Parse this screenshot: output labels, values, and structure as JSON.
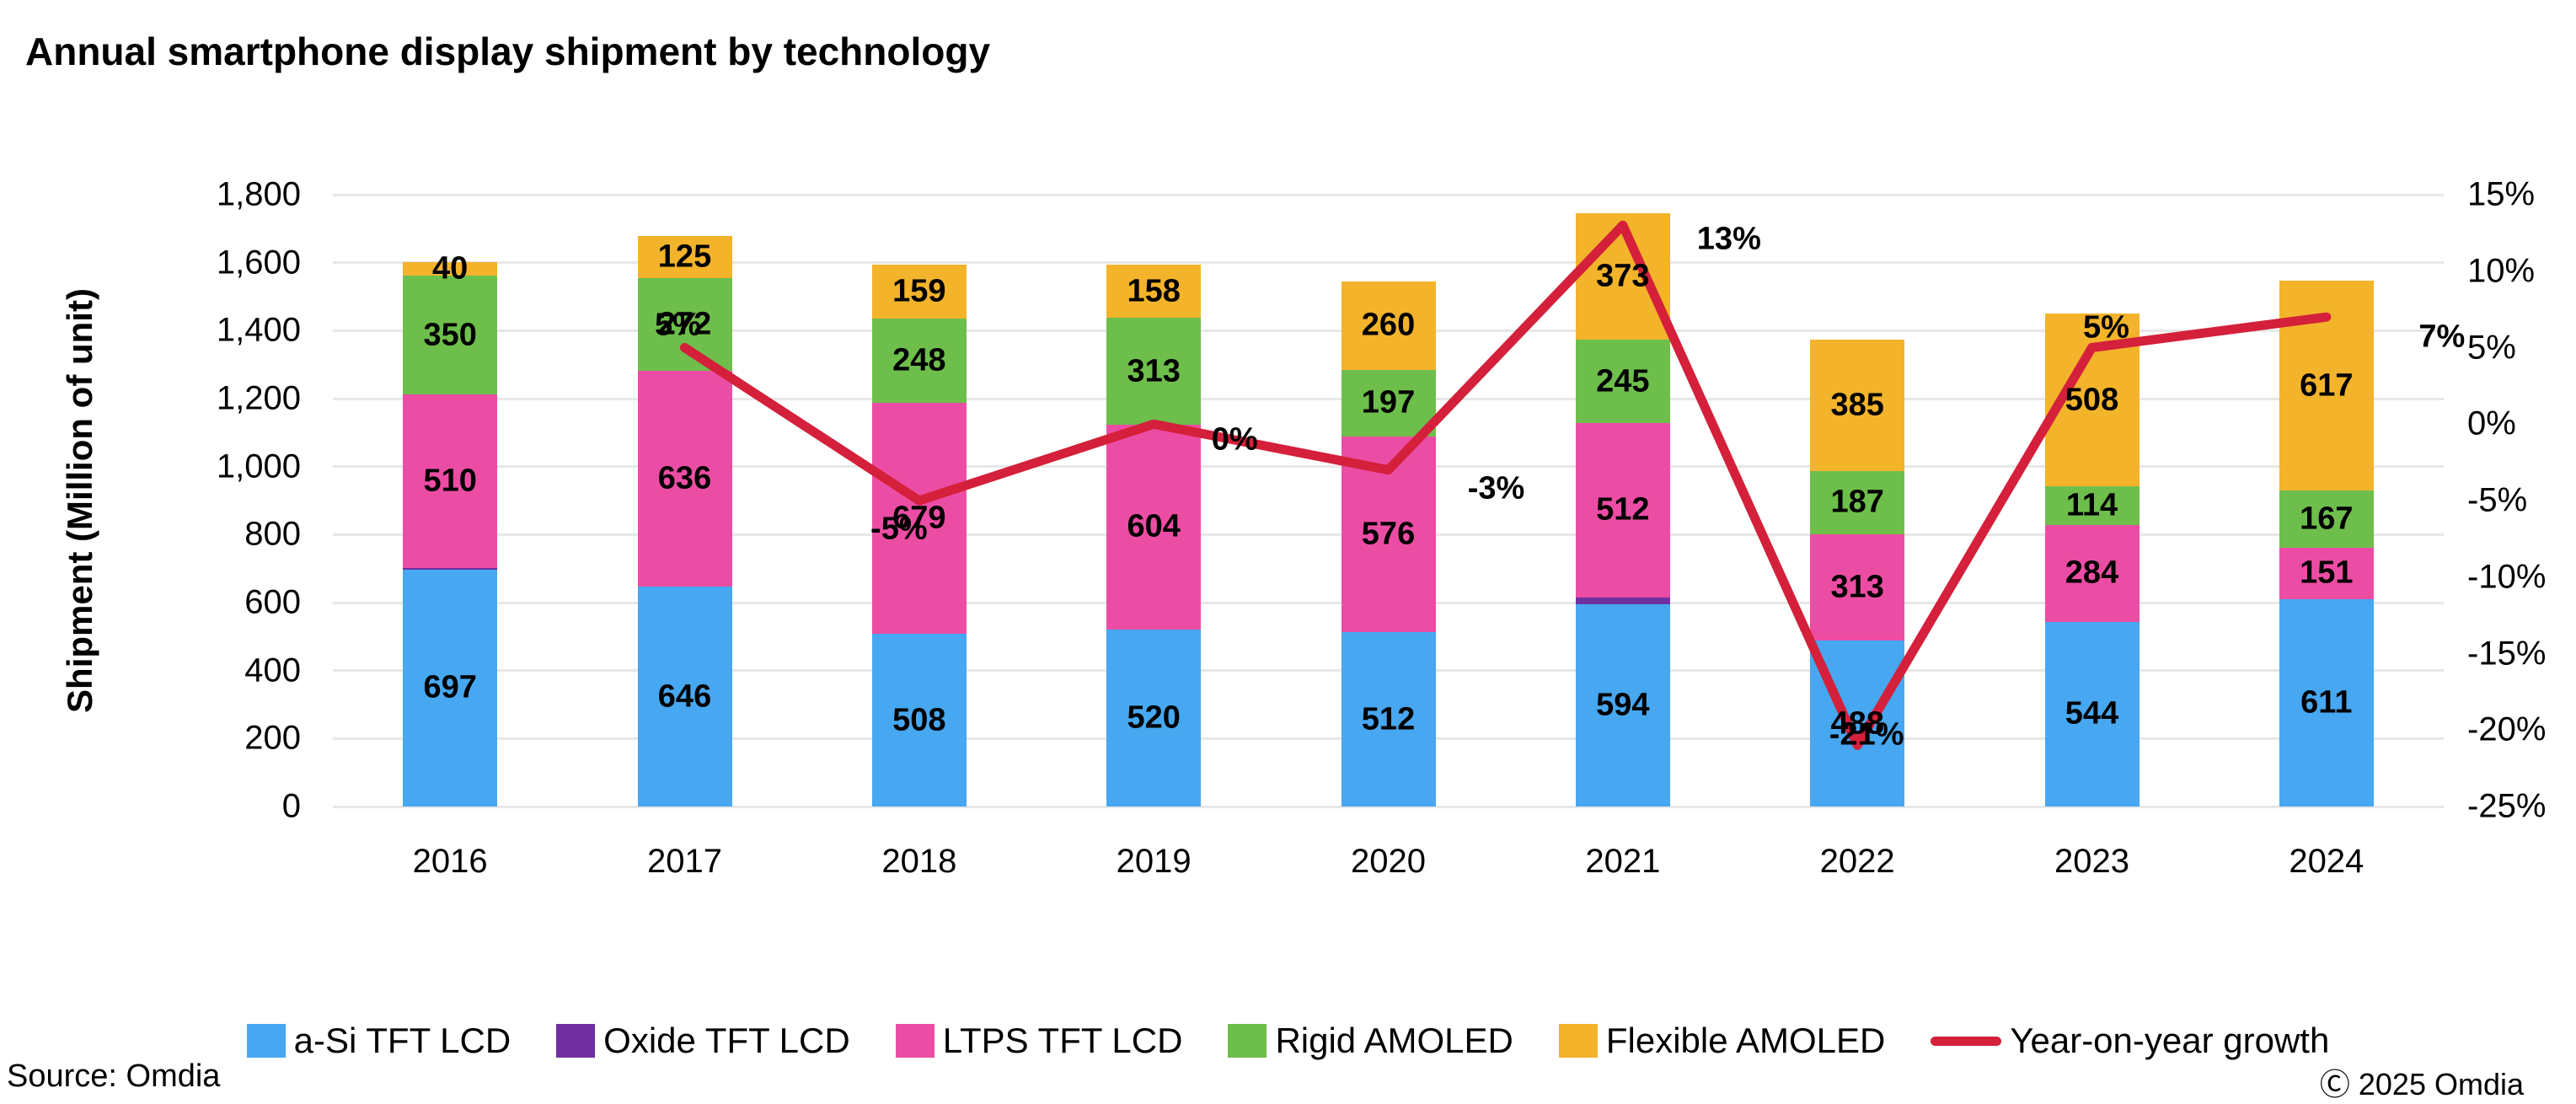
{
  "title": "Annual smartphone display shipment by technology",
  "source": "Source: Omdia",
  "copyright": "Ⓒ 2025 Omdia",
  "y_axis": {
    "title": "Shipment (Million of unit)",
    "min": 0,
    "max": 1800,
    "step": 200,
    "tick_labels": [
      "0",
      "200",
      "400",
      "600",
      "800",
      "1,000",
      "1,200",
      "1,400",
      "1,600",
      "1,800"
    ]
  },
  "y2_axis": {
    "min": -25,
    "max": 15,
    "step": 5,
    "tick_labels": [
      "15%",
      "10%",
      "5%",
      "0%",
      "-5%",
      "-10%",
      "-15%",
      "-20%",
      "-25%"
    ]
  },
  "chart_data": {
    "type": "combo: stacked-bar + line",
    "title": "Annual smartphone display shipment by technology",
    "xlabel": "",
    "ylabel": "Shipment (Million of unit)",
    "ylim": [
      0,
      1800
    ],
    "y2lim": [
      -25,
      15
    ],
    "grid": true,
    "legend_position": "bottom",
    "categories": [
      "2016",
      "2017",
      "2018",
      "2019",
      "2020",
      "2021",
      "2022",
      "2023",
      "2024"
    ],
    "series": [
      {
        "name": "a-Si TFT LCD",
        "color": "#47A7F0",
        "values": [
          697,
          646,
          508,
          520,
          512,
          594,
          488,
          544,
          611
        ],
        "labels": [
          "697",
          "646",
          "508",
          "520",
          "512",
          "594",
          "488",
          "544",
          "611"
        ]
      },
      {
        "name": "Oxide TFT LCD",
        "color": "#7030A0",
        "values": [
          5,
          0,
          0,
          0,
          0,
          22,
          0,
          0,
          0
        ],
        "labels": [
          "",
          "",
          "",
          "",
          "",
          "",
          "",
          "",
          ""
        ]
      },
      {
        "name": "LTPS TFT LCD",
        "color": "#EC4DA4",
        "values": [
          510,
          636,
          679,
          604,
          576,
          512,
          313,
          284,
          151
        ],
        "labels": [
          "510",
          "636",
          "679",
          "604",
          "576",
          "512",
          "313",
          "284",
          "151"
        ]
      },
      {
        "name": "Rigid AMOLED",
        "color": "#6EBE4C",
        "values": [
          350,
          272,
          248,
          313,
          197,
          245,
          187,
          114,
          167
        ],
        "labels": [
          "350",
          "272",
          "248",
          "313",
          "197",
          "245",
          "187",
          "114",
          "167"
        ]
      },
      {
        "name": "Flexible AMOLED",
        "color": "#F3B32B",
        "values": [
          40,
          125,
          159,
          158,
          260,
          373,
          385,
          508,
          617
        ],
        "labels": [
          "40",
          "125",
          "159",
          "158",
          "260",
          "373",
          "385",
          "508",
          "617"
        ]
      }
    ],
    "line_series": {
      "name": "Year-on-year growth",
      "color": "#D4203A",
      "values_pct": [
        null,
        5,
        -5,
        0,
        -3,
        13,
        -21,
        5,
        7
      ],
      "labels": [
        "",
        "5%",
        "-5%",
        "0%",
        "-3%",
        "13%",
        "-21%",
        "5%",
        "7%"
      ]
    }
  },
  "legend": {
    "items": [
      {
        "label": "a-Si TFT LCD",
        "color": "#47A7F0",
        "marker": "square"
      },
      {
        "label": "Oxide TFT LCD",
        "color": "#7030A0",
        "marker": "square"
      },
      {
        "label": "LTPS TFT LCD",
        "color": "#EC4DA4",
        "marker": "square"
      },
      {
        "label": "Rigid AMOLED",
        "color": "#6EBE4C",
        "marker": "square"
      },
      {
        "label": "Flexible AMOLED",
        "color": "#F3B32B",
        "marker": "square"
      },
      {
        "label": "Year-on-year growth",
        "color": "#D4203A",
        "marker": "line"
      }
    ]
  }
}
